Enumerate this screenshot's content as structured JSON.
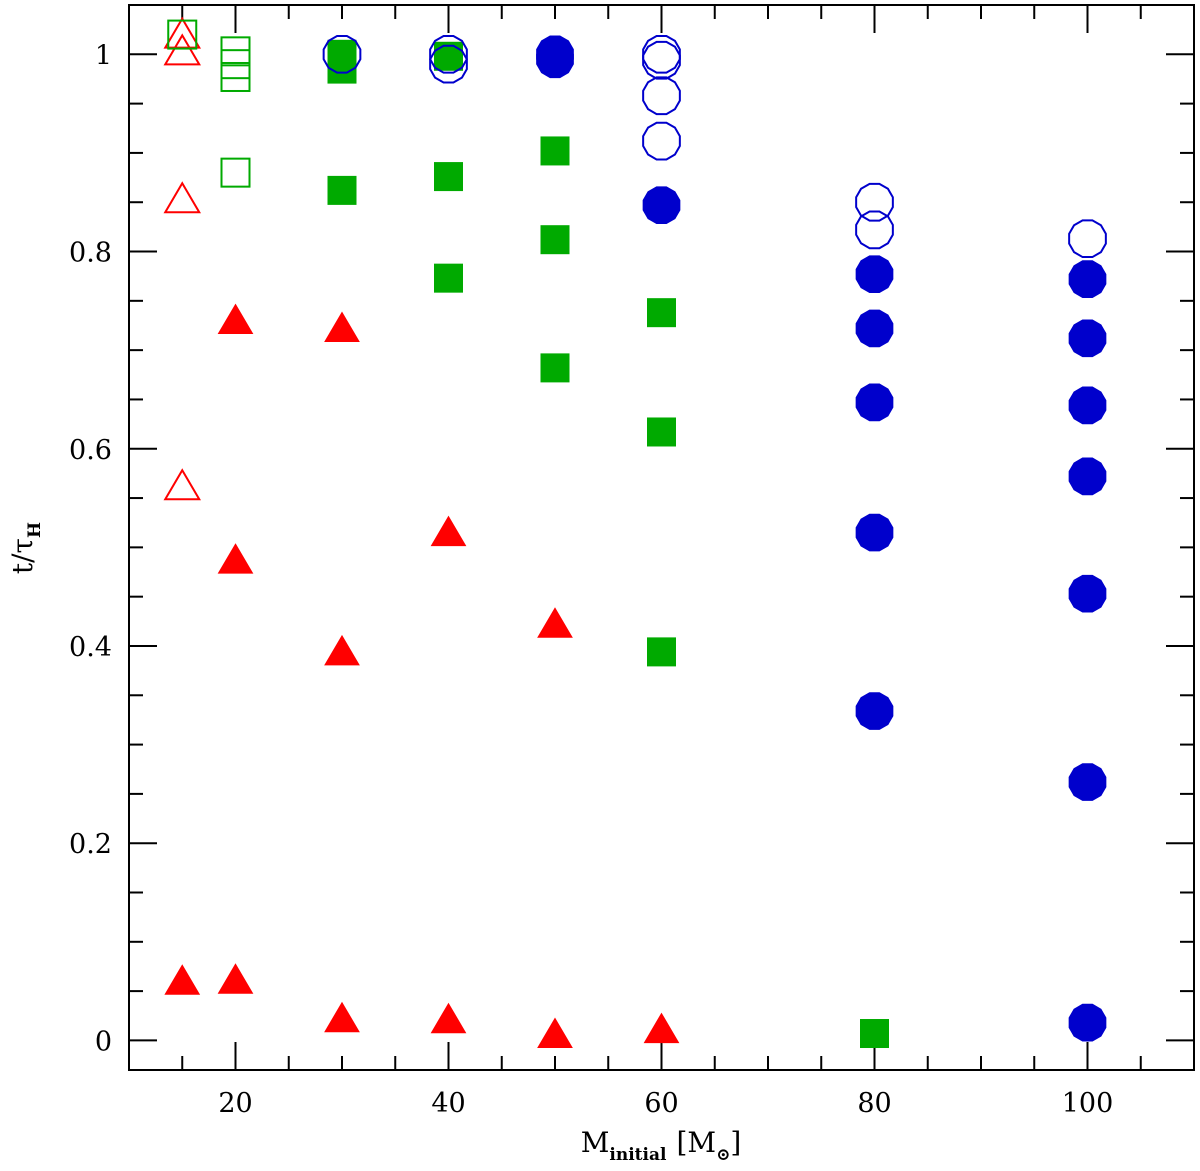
{
  "chart_data": {
    "type": "scatter",
    "title": "",
    "xlabel": {
      "main": "M",
      "sub": "initial",
      "bracket_open": "[",
      "unit_main": "M",
      "unit_sub": "⊙",
      "bracket_close": "]"
    },
    "ylabel": {
      "main": "t/τ",
      "sub": "H"
    },
    "xlim": [
      10,
      110
    ],
    "ylim": [
      -0.03,
      1.05
    ],
    "x_ticks": [
      20,
      40,
      60,
      80,
      100
    ],
    "x_tick_labels": [
      "20",
      "40",
      "60",
      "80",
      "100"
    ],
    "y_ticks": [
      0,
      0.2,
      0.4,
      0.6,
      0.8,
      1
    ],
    "y_tick_labels": [
      "0",
      "0.2",
      "0.4",
      "0.6",
      "0.8",
      "1"
    ],
    "grid": false,
    "colors": {
      "triangle": "#ff0000",
      "square": "#00aa00",
      "circle": "#0000cc"
    },
    "series": [
      {
        "marker": "triangle",
        "fill": "open",
        "x": [
          15,
          15,
          15,
          15
        ],
        "y": [
          1.02,
          1.003,
          0.853,
          0.562
        ]
      },
      {
        "marker": "triangle",
        "fill": "filled",
        "x": [
          15,
          20,
          20,
          20,
          30,
          30,
          30,
          40,
          40,
          50,
          50,
          60
        ],
        "y": [
          0.06,
          0.73,
          0.487,
          0.061,
          0.722,
          0.394,
          0.022,
          0.515,
          0.021,
          0.422,
          0.006,
          0.011
        ]
      },
      {
        "marker": "square",
        "fill": "open",
        "x": [
          15,
          20,
          20,
          20,
          20
        ],
        "y": [
          1.02,
          1.003,
          0.99,
          0.977,
          0.88
        ]
      },
      {
        "marker": "square",
        "fill": "filled",
        "x": [
          30,
          30,
          30,
          40,
          40,
          40,
          50,
          50,
          50,
          60,
          60,
          60,
          80
        ],
        "y": [
          1.0,
          0.985,
          0.862,
          0.998,
          0.876,
          0.773,
          0.902,
          0.812,
          0.682,
          0.738,
          0.617,
          0.394,
          0.007
        ]
      },
      {
        "marker": "circle",
        "fill": "open",
        "x": [
          30,
          40,
          40,
          60,
          60,
          60,
          60,
          80,
          80,
          100
        ],
        "y": [
          1.0,
          1.0,
          0.99,
          1.0,
          0.994,
          0.958,
          0.912,
          0.85,
          0.822,
          0.813
        ]
      },
      {
        "marker": "circle",
        "fill": "filled",
        "x": [
          50,
          50,
          60,
          80,
          80,
          80,
          80,
          80,
          100,
          100,
          100,
          100,
          100,
          100
        ],
        "y": [
          1.0,
          0.995,
          0.847,
          0.777,
          0.722,
          0.647,
          0.515,
          0.334,
          0.772,
          0.712,
          0.644,
          0.572,
          0.453,
          0.262
        ]
      },
      {
        "marker": "circle",
        "fill": "filled",
        "x": [
          100
        ],
        "y": [
          0.018
        ]
      }
    ]
  }
}
